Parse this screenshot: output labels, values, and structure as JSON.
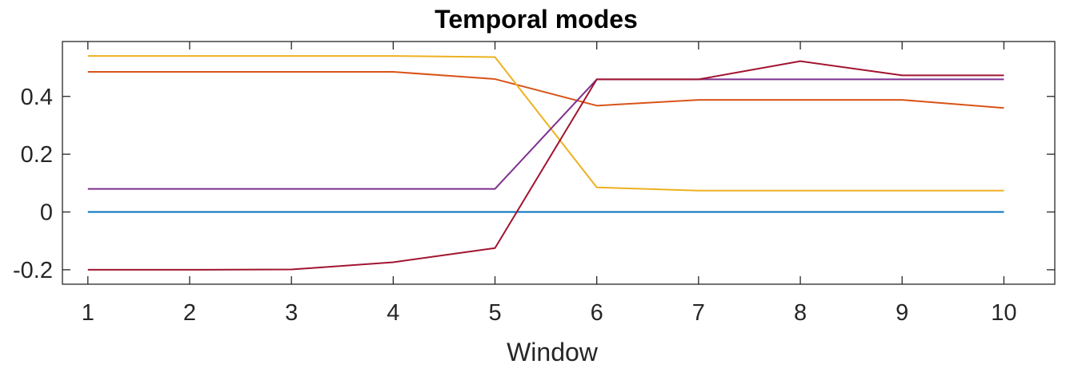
{
  "chart_data": {
    "type": "line",
    "title": "Temporal modes",
    "xlabel": "Window",
    "ylabel": "",
    "x": [
      1,
      2,
      3,
      4,
      5,
      6,
      7,
      8,
      9,
      10
    ],
    "xlim": [
      0.75,
      10.5
    ],
    "ylim": [
      -0.25,
      0.59
    ],
    "xticks": [
      1,
      2,
      3,
      4,
      5,
      6,
      7,
      8,
      9,
      10
    ],
    "yticks": [
      -0.2,
      0,
      0.2,
      0.4
    ],
    "ytick_labels": [
      "-0.2",
      "0",
      "0.2",
      "0.4"
    ],
    "grid": false,
    "legend": "none",
    "series": [
      {
        "color": "#0072BD",
        "values": [
          0,
          0,
          0,
          0,
          0,
          0,
          0,
          0,
          0,
          0
        ]
      },
      {
        "color": "#D95319",
        "values": [
          0.485,
          0.485,
          0.485,
          0.485,
          0.46,
          0.368,
          0.388,
          0.388,
          0.388,
          0.36
        ]
      },
      {
        "color": "#EDB120",
        "values": [
          0.54,
          0.54,
          0.54,
          0.54,
          0.536,
          0.085,
          0.074,
          0.074,
          0.074,
          0.074
        ]
      },
      {
        "color": "#7E2F8E",
        "values": [
          0.08,
          0.08,
          0.08,
          0.08,
          0.08,
          0.459,
          0.459,
          0.459,
          0.459,
          0.459
        ]
      },
      {
        "color": "#A2142F",
        "values": [
          -0.2,
          -0.2,
          -0.199,
          -0.174,
          -0.125,
          0.459,
          0.459,
          0.522,
          0.473,
          0.473
        ]
      }
    ]
  }
}
